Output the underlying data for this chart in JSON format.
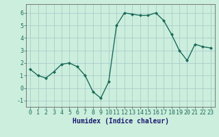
{
  "x": [
    0,
    1,
    2,
    3,
    4,
    5,
    6,
    7,
    8,
    9,
    10,
    11,
    12,
    13,
    14,
    15,
    16,
    17,
    18,
    19,
    20,
    21,
    22,
    23
  ],
  "y": [
    1.5,
    1.0,
    0.8,
    1.3,
    1.9,
    2.0,
    1.7,
    1.0,
    -0.3,
    -0.8,
    0.5,
    5.0,
    6.0,
    5.9,
    5.8,
    5.8,
    6.0,
    5.4,
    4.3,
    3.0,
    2.2,
    3.5,
    3.3,
    3.2
  ],
  "xlim": [
    -0.5,
    23.5
  ],
  "ylim": [
    -1.5,
    6.7
  ],
  "yticks": [
    -1,
    0,
    1,
    2,
    3,
    4,
    5,
    6
  ],
  "xticks": [
    0,
    1,
    2,
    3,
    4,
    5,
    6,
    7,
    8,
    9,
    10,
    11,
    12,
    13,
    14,
    15,
    16,
    17,
    18,
    19,
    20,
    21,
    22,
    23
  ],
  "xlabel": "Humidex (Indice chaleur)",
  "line_color": "#1a6b5a",
  "marker": "D",
  "marker_size": 2.0,
  "line_width": 1.0,
  "bg_color": "#cceedd",
  "grid_color": "#aacccc",
  "xlabel_fontsize": 7,
  "tick_fontsize": 6,
  "xlabel_color": "#1a1a6e",
  "tick_color": "#1a6b5a"
}
